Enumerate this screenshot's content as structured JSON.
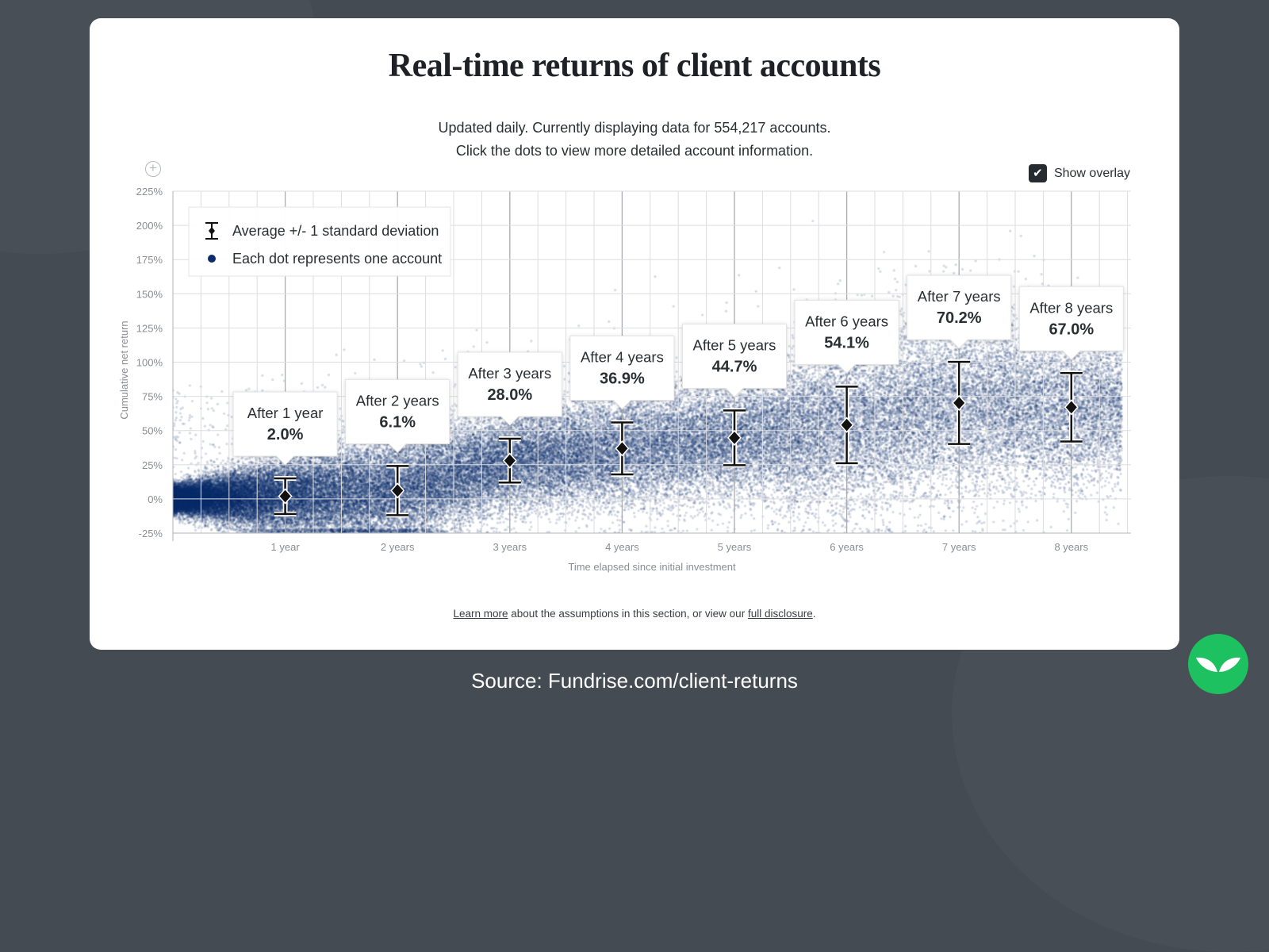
{
  "title": "Real-time returns of client accounts",
  "subtitle_line1": "Updated daily. Currently displaying data for 554,217 accounts.",
  "subtitle_line2": "Click the dots to view more detailed account information.",
  "show_overlay": {
    "label": "Show overlay",
    "checked": true
  },
  "footer": {
    "link1": "Learn more",
    "middle": " about the assumptions in this section, or view our ",
    "link2": "full disclosure",
    "end": "."
  },
  "source": "Source: Fundrise.com/client-returns",
  "colors": {
    "background": "#454b52",
    "dots": "#0b2d6b",
    "brand_green": "#1ec15f"
  },
  "icons": {
    "zoom": "plus-circle-icon",
    "logo": "leaf-icon",
    "checkbox": "check-icon"
  },
  "chart_data": {
    "type": "scatter",
    "xlabel": "Time elapsed since initial investment",
    "ylabel": "Cumulative net return",
    "ylim": [
      -25,
      225
    ],
    "yticks": [
      "225%",
      "200%",
      "175%",
      "150%",
      "125%",
      "100%",
      "75%",
      "50%",
      "25%",
      "0%",
      "-25%"
    ],
    "ytick_values": [
      225,
      200,
      175,
      150,
      125,
      100,
      75,
      50,
      25,
      0,
      -25
    ],
    "xlim": [
      0,
      8.5
    ],
    "xticks": [
      "1 year",
      "2 years",
      "3 years",
      "4 years",
      "5 years",
      "6 years",
      "7 years",
      "8 years"
    ],
    "grid": true,
    "legend": {
      "placement": "top-left",
      "items": [
        "Average +/- 1 standard deviation",
        "Each dot represents one account"
      ]
    },
    "series": [
      {
        "name": "Average +/- 1 standard deviation",
        "type": "errorbar",
        "x": [
          1,
          2,
          3,
          4,
          5,
          6,
          7,
          8
        ],
        "labels": [
          "After 1 year",
          "After 2 years",
          "After 3 years",
          "After 4 years",
          "After 5 years",
          "After 6 years",
          "After 7 years",
          "After 8 years"
        ],
        "display": [
          "2.0%",
          "6.1%",
          "28.0%",
          "36.9%",
          "44.7%",
          "54.1%",
          "70.2%",
          "67.0%"
        ],
        "mean": [
          2.0,
          6.1,
          28.0,
          36.9,
          44.7,
          54.1,
          70.2,
          67.0
        ],
        "std": [
          13,
          18,
          16,
          19,
          20,
          28,
          30,
          25
        ]
      }
    ]
  }
}
